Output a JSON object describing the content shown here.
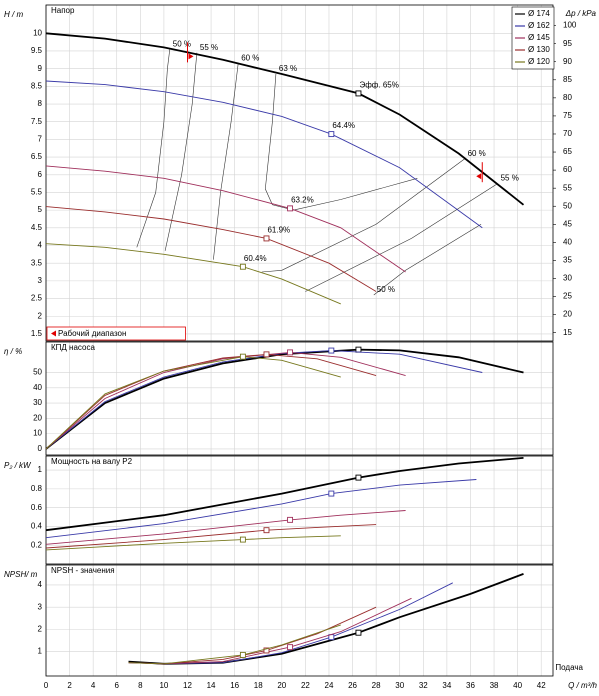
{
  "chart_data": [
    {
      "type": "line",
      "title": "Напор",
      "ylabel": "H / m",
      "y2label": "Δp / kPa",
      "ylim": [
        1.3,
        10.8
      ],
      "yticks": [
        1.5,
        2,
        2.5,
        3,
        3.5,
        4,
        4.5,
        5,
        5.5,
        6,
        6.5,
        7,
        7.5,
        8,
        8.5,
        9,
        9.5,
        10
      ],
      "y2lim": [
        12.7,
        105.7
      ],
      "y2ticks": [
        15,
        20,
        25,
        30,
        35,
        40,
        45,
        50,
        55,
        60,
        65,
        70,
        75,
        80,
        85,
        90,
        95,
        100
      ],
      "grid": true,
      "legend": "upper right",
      "series": [
        {
          "name": "Ø 174",
          "color": "#000000",
          "x": [
            0,
            5,
            10,
            15,
            20,
            26.5,
            30,
            35,
            40.5
          ],
          "values": [
            10.0,
            9.85,
            9.6,
            9.25,
            8.85,
            8.3,
            7.7,
            6.6,
            5.15
          ],
          "bep": {
            "x": 26.5,
            "y": 8.3,
            "label": "Эфф. 65%"
          }
        },
        {
          "name": "Ø 162",
          "color": "#3a3aa8",
          "x": [
            0,
            5,
            10,
            15,
            20,
            24.2,
            30,
            37
          ],
          "values": [
            8.65,
            8.55,
            8.35,
            8.05,
            7.65,
            7.15,
            6.2,
            4.5
          ],
          "bep": {
            "x": 24.2,
            "y": 7.15,
            "label": "64.4%"
          }
        },
        {
          "name": "Ø 145",
          "color": "#a0305c",
          "x": [
            0,
            5,
            10,
            15,
            20.7,
            25,
            30.5
          ],
          "values": [
            6.25,
            6.1,
            5.9,
            5.55,
            5.05,
            4.5,
            3.25
          ],
          "bep": {
            "x": 20.7,
            "y": 5.05,
            "label": "63.2%"
          }
        },
        {
          "name": "Ø 130",
          "color": "#9a2e2e",
          "x": [
            0,
            5,
            10,
            15,
            18.7,
            24,
            28
          ],
          "values": [
            5.1,
            4.95,
            4.75,
            4.45,
            4.2,
            3.5,
            2.7
          ],
          "bep": {
            "x": 18.7,
            "y": 4.2,
            "label": "61.9%"
          }
        },
        {
          "name": "Ø 120",
          "color": "#77781e",
          "x": [
            0,
            5,
            10,
            16.7,
            20,
            25
          ],
          "values": [
            4.05,
            3.95,
            3.75,
            3.4,
            3.05,
            2.35
          ],
          "bep": {
            "x": 16.7,
            "y": 3.4,
            "label": "60.4%"
          }
        }
      ],
      "iso_lines": [
        {
          "label": "50 %",
          "x": [
            10.5,
            10.3,
            10.0,
            9.3,
            7.7
          ],
          "y": [
            9.55,
            9.0,
            7.5,
            5.5,
            3.95
          ]
        },
        {
          "label": "55 %",
          "x": [
            12.8,
            12.4,
            11.5,
            10.1
          ],
          "y": [
            9.45,
            8.0,
            6.0,
            3.85
          ]
        },
        {
          "label": "60 %",
          "x": [
            16.3,
            15.7,
            14.8,
            14.2
          ],
          "y": [
            9.15,
            7.5,
            5.5,
            3.6
          ]
        },
        {
          "label": "63 %",
          "x": [
            19.5,
            19.2,
            18.6,
            19.2,
            21.0,
            25.0,
            31.5
          ],
          "y": [
            8.85,
            7.5,
            5.6,
            5.15,
            5.0,
            5.3,
            5.9
          ]
        },
        {
          "label": "60 %",
          "x": [
            35.5,
            28,
            20,
            18.3
          ],
          "y": [
            6.45,
            4.6,
            3.3,
            3.25
          ]
        },
        {
          "label": "55 %",
          "x": [
            38.3,
            31,
            22
          ],
          "y": [
            5.75,
            4.2,
            2.7
          ]
        },
        {
          "label": "50 %",
          "x": [
            27.8,
            30.5,
            36.9
          ],
          "y": [
            2.6,
            3.3,
            4.6
          ]
        }
      ],
      "operating_range": {
        "label": "Рабочий диапазон",
        "x": [
          12,
          37
        ]
      }
    },
    {
      "type": "line",
      "title": "КПД насоса",
      "ylabel": "η / %",
      "ylim": [
        -4,
        70
      ],
      "yticks": [
        0,
        10,
        20,
        30,
        40,
        50
      ],
      "grid": true,
      "series": [
        {
          "color": "#000000",
          "x": [
            0,
            5,
            10,
            15,
            20,
            26.5,
            30,
            35,
            40.5
          ],
          "values": [
            0,
            30,
            46,
            56,
            62,
            65,
            64.5,
            60,
            50
          ]
        },
        {
          "color": "#3a3aa8",
          "x": [
            0,
            5,
            10,
            15,
            20,
            24.2,
            30,
            37
          ],
          "values": [
            0,
            31,
            47,
            57,
            62.5,
            64.4,
            62,
            50
          ]
        },
        {
          "color": "#a0305c",
          "x": [
            0,
            5,
            10,
            15,
            20.7,
            25,
            30.5
          ],
          "values": [
            0,
            33,
            50,
            59,
            63.2,
            60,
            48
          ]
        },
        {
          "color": "#9a2e2e",
          "x": [
            0,
            5,
            10,
            15,
            18.7,
            23,
            28
          ],
          "values": [
            0,
            35,
            51,
            59.5,
            61.9,
            59,
            48
          ]
        },
        {
          "color": "#77781e",
          "x": [
            0,
            5,
            10,
            16.7,
            20,
            25
          ],
          "values": [
            0,
            36,
            51,
            60.4,
            58,
            47
          ]
        }
      ]
    },
    {
      "type": "line",
      "title": "Мощность на валу P2",
      "ylabel": "P₂ / kW",
      "ylim": [
        0,
        1.15
      ],
      "yticks": [
        0.2,
        0.4,
        0.6,
        0.8,
        1
      ],
      "grid": true,
      "series": [
        {
          "color": "#000000",
          "x": [
            0,
            10,
            20,
            26.5,
            30,
            35,
            40.5
          ],
          "values": [
            0.36,
            0.52,
            0.75,
            0.92,
            0.99,
            1.07,
            1.13
          ]
        },
        {
          "color": "#3a3aa8",
          "x": [
            0,
            10,
            20,
            24.2,
            30,
            36.5
          ],
          "values": [
            0.28,
            0.43,
            0.64,
            0.75,
            0.84,
            0.9
          ]
        },
        {
          "color": "#a0305c",
          "x": [
            0,
            10,
            20.7,
            25,
            30.5
          ],
          "values": [
            0.21,
            0.32,
            0.47,
            0.52,
            0.57
          ]
        },
        {
          "color": "#9a2e2e",
          "x": [
            0,
            10,
            18.7,
            23,
            28
          ],
          "values": [
            0.17,
            0.26,
            0.36,
            0.39,
            0.42
          ]
        },
        {
          "color": "#77781e",
          "x": [
            0,
            10,
            16.7,
            20,
            25
          ],
          "values": [
            0.15,
            0.22,
            0.26,
            0.28,
            0.3
          ]
        }
      ]
    },
    {
      "type": "line",
      "title": "NPSH - значения",
      "ylabel": "NPSH/ m",
      "ylim": [
        -0.1,
        4.9
      ],
      "yticks": [
        1,
        2,
        3,
        4
      ],
      "grid": true,
      "xlabel": "Q / m³/h",
      "xlabel2": "Подача",
      "xlim": [
        0,
        43
      ],
      "xticks": [
        0,
        2,
        4,
        6,
        8,
        10,
        12,
        14,
        16,
        18,
        20,
        22,
        24,
        26,
        28,
        30,
        32,
        34,
        36,
        38,
        40,
        42
      ],
      "series": [
        {
          "color": "#000000",
          "x": [
            7,
            10,
            15,
            20,
            26.5,
            30,
            36,
            40.5
          ],
          "values": [
            0.55,
            0.45,
            0.5,
            0.9,
            1.85,
            2.55,
            3.6,
            4.5
          ]
        },
        {
          "color": "#3a3aa8",
          "x": [
            7,
            10,
            15,
            20,
            24.2,
            30,
            34.5
          ],
          "values": [
            0.5,
            0.45,
            0.5,
            0.95,
            1.65,
            2.9,
            4.1
          ]
        },
        {
          "color": "#a0305c",
          "x": [
            7,
            10,
            15,
            20.7,
            25,
            31
          ],
          "values": [
            0.5,
            0.45,
            0.55,
            1.2,
            1.9,
            3.4
          ]
        },
        {
          "color": "#9a2e2e",
          "x": [
            7,
            10,
            15,
            18.7,
            23,
            28
          ],
          "values": [
            0.5,
            0.45,
            0.65,
            1.05,
            1.8,
            3.0
          ]
        },
        {
          "color": "#77781e",
          "x": [
            7,
            10,
            16.7,
            20,
            25
          ],
          "values": [
            0.5,
            0.45,
            0.85,
            1.3,
            2.2
          ]
        }
      ]
    }
  ]
}
